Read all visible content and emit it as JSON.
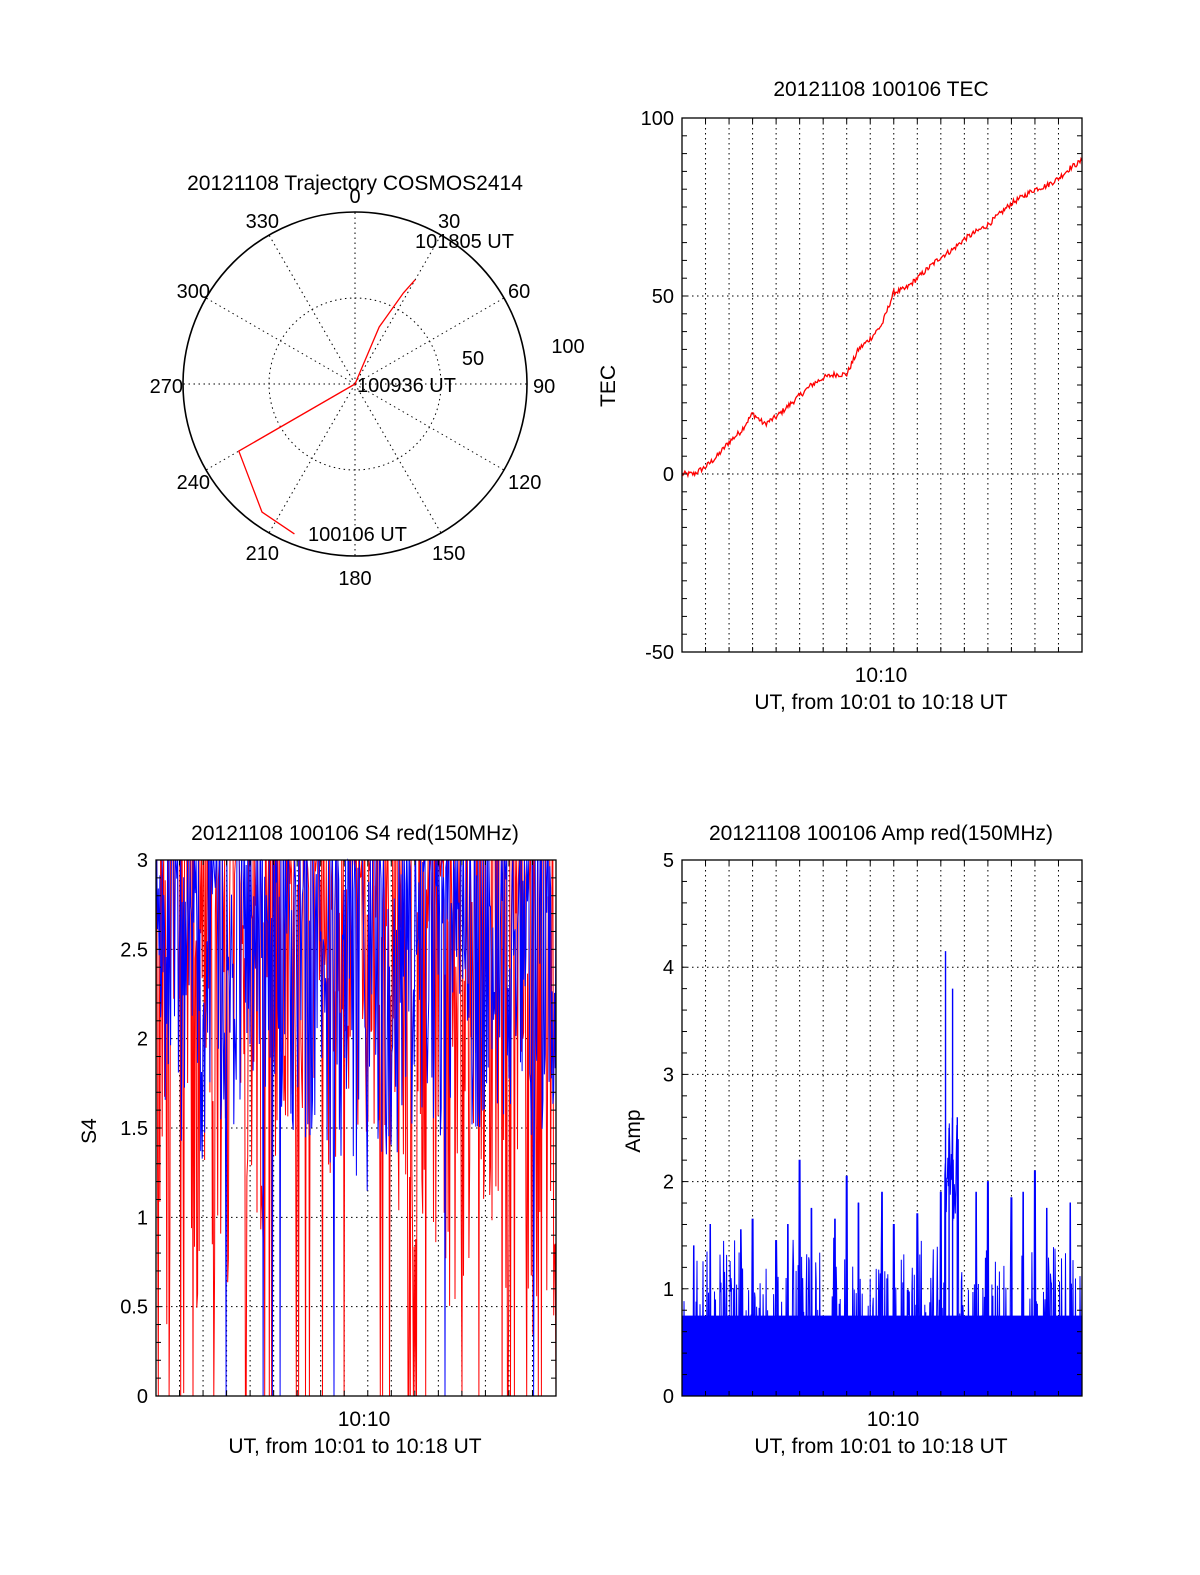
{
  "chart_data": [
    {
      "id": "trajectory",
      "type": "polar",
      "title": "20121108 Trajectory COSMOS2414",
      "angular_labels": [
        "0",
        "30",
        "60",
        "90",
        "120",
        "150",
        "180",
        "210",
        "240",
        "270",
        "300",
        "330"
      ],
      "radial_labels": [
        "50",
        "100"
      ],
      "rlim": [
        0,
        100
      ],
      "grid": true,
      "series": [
        {
          "color": "#ff0000",
          "points": [
            [
              202,
              94
            ],
            [
              216,
              92
            ],
            [
              240,
              78
            ],
            [
              0,
              0
            ],
            [
              23,
              36
            ],
            [
              28,
              60
            ],
            [
              30,
              70
            ]
          ]
        }
      ],
      "annotations": [
        {
          "text": "101805 UT",
          "az": 30,
          "r": 70
        },
        {
          "text": "100936 UT",
          "az": 0,
          "r": 0
        },
        {
          "text": "100106 UT",
          "az": 202,
          "r": 94
        }
      ]
    },
    {
      "id": "tec",
      "type": "line",
      "title": "20121108 100106 TEC",
      "ylabel": "TEC",
      "xlabel": "UT, from 10:01 to 10:18 UT",
      "ylim": [
        -50,
        100
      ],
      "yticks": [
        "-50",
        "0",
        "50",
        "100"
      ],
      "xtick_label": "10:10",
      "grid": true,
      "series": [
        {
          "color": "#ff0000",
          "x": [
            0,
            0.5,
            1,
            1.5,
            2,
            2.5,
            3,
            3.5,
            4,
            4.5,
            5,
            5.5,
            6,
            6.5,
            7,
            7.5,
            8,
            8.5,
            9,
            9.5,
            10,
            10.5,
            11,
            11.5,
            12,
            12.5,
            13,
            13.5,
            14,
            14.5,
            15,
            15.5,
            16,
            16.5,
            17
          ],
          "y": [
            0,
            0,
            2,
            5,
            9,
            12,
            17,
            14,
            16,
            19,
            22,
            25,
            27,
            28,
            28,
            35,
            38,
            42,
            51,
            52,
            55,
            58,
            61,
            63,
            66,
            68,
            70,
            73,
            76,
            78,
            80,
            81,
            83,
            86,
            88
          ]
        }
      ]
    },
    {
      "id": "s4",
      "type": "line",
      "title": "20121108 100106 S4 red(150MHz)",
      "ylabel": "S4",
      "xlabel": "UT, from 10:01 to 10:18 UT",
      "ylim": [
        0,
        3
      ],
      "yticks": [
        "0",
        "0.5",
        "1",
        "1.5",
        "2",
        "2.5",
        "3"
      ],
      "xtick_label": "10:10",
      "grid": true,
      "series": [
        {
          "color": "#ff0000",
          "y_range": [
            0,
            3
          ],
          "min_band": [
            0,
            0,
            0,
            0.2,
            0.4,
            0.5,
            0.6,
            0.7,
            0.8,
            1.0,
            1.2,
            1.3,
            1.3,
            1.2,
            1.2,
            1.3,
            1.4,
            1.4,
            1.3,
            1.1,
            0.9,
            0.8,
            0.7,
            0.6,
            0.5,
            0.5,
            0.5,
            0.4,
            0.3,
            0.2,
            0.1,
            0,
            0,
            0
          ]
        },
        {
          "color": "#0000ff",
          "y_range": [
            0,
            3
          ],
          "min_band": [
            1.6,
            1.5,
            1.4,
            1.3,
            1.3,
            1.4,
            1.5,
            1.5,
            1.6,
            1.6,
            1.5,
            1.4,
            1.4,
            1.3,
            1.3,
            1.2,
            1.1,
            1.1,
            1.2,
            1.3,
            1.4,
            1.5,
            1.5,
            1.4,
            1.4,
            1.5,
            1.5,
            1.6,
            1.5,
            1.5,
            1.4,
            1.4,
            1.5,
            1.5
          ]
        }
      ]
    },
    {
      "id": "amp",
      "type": "line",
      "title": "20121108 100106 Amp red(150MHz)",
      "ylabel": "Amp",
      "xlabel": "UT, from 10:01 to 10:18 UT",
      "ylim": [
        0,
        5
      ],
      "yticks": [
        "0",
        "1",
        "2",
        "3",
        "4",
        "5"
      ],
      "xtick_label": "10:10",
      "grid": true,
      "series": [
        {
          "color": "#0000ff",
          "baseline": 1.05,
          "peaks": [
            [
              0.5,
              1.4
            ],
            [
              1.2,
              1.6
            ],
            [
              2.5,
              1.55
            ],
            [
              3.0,
              1.65
            ],
            [
              4.0,
              1.45
            ],
            [
              4.5,
              1.6
            ],
            [
              5.0,
              2.2
            ],
            [
              5.5,
              1.75
            ],
            [
              6.5,
              1.65
            ],
            [
              7.0,
              2.05
            ],
            [
              7.5,
              1.8
            ],
            [
              8.5,
              1.9
            ],
            [
              9.0,
              1.6
            ],
            [
              10.0,
              1.7
            ],
            [
              11.0,
              1.9
            ],
            [
              11.2,
              4.15
            ],
            [
              11.35,
              2.5
            ],
            [
              11.5,
              3.8
            ],
            [
              11.7,
              2.6
            ],
            [
              12.5,
              1.9
            ],
            [
              13.0,
              2.0
            ],
            [
              14.0,
              1.85
            ],
            [
              14.5,
              1.9
            ],
            [
              15.0,
              2.1
            ],
            [
              15.5,
              1.75
            ],
            [
              16.5,
              1.8
            ]
          ]
        }
      ]
    }
  ]
}
